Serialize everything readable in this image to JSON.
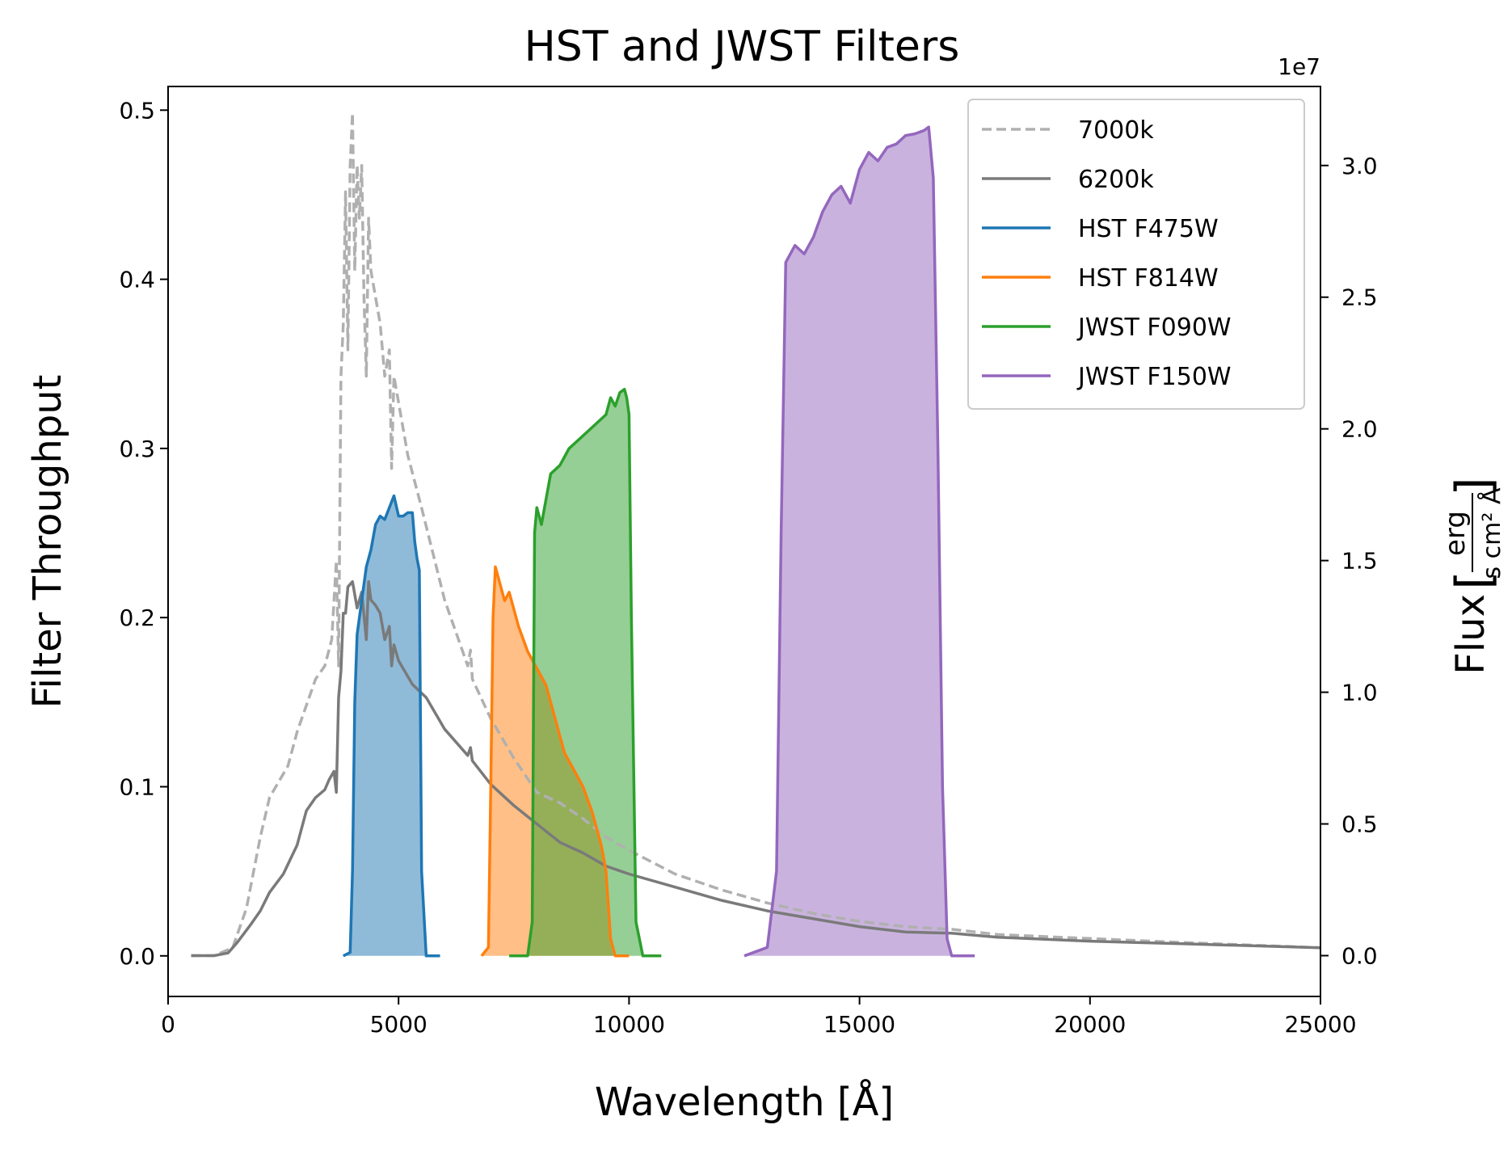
{
  "chart_data": {
    "type": "line",
    "title": "HST and JWST Filters",
    "xlabel": "Wavelength [Å]",
    "ylabel": "Filter Throughput",
    "y2label": "Flux",
    "y2label_units": {
      "numerator": "erg",
      "denominator": "s cm² Å"
    },
    "y2_offset_text": "1e7",
    "xlim": [
      0,
      25000
    ],
    "ylim": [
      -0.024,
      0.514
    ],
    "y2lim": [
      -0.155,
      3.3
    ],
    "xticks": [
      0,
      5000,
      10000,
      15000,
      20000,
      25000
    ],
    "xtick_labels": [
      "0",
      "5000",
      "10000",
      "15000",
      "20000",
      "25000"
    ],
    "yticks": [
      0.0,
      0.1,
      0.2,
      0.3,
      0.4,
      0.5
    ],
    "ytick_labels": [
      "0.0",
      "0.1",
      "0.2",
      "0.3",
      "0.4",
      "0.5"
    ],
    "y2ticks": [
      0.0,
      0.5,
      1.0,
      1.5,
      2.0,
      2.5,
      3.0
    ],
    "y2tick_labels": [
      "0.0",
      "0.5",
      "1.0",
      "1.5",
      "2.0",
      "2.5",
      "3.0"
    ],
    "legend_position": "top-right",
    "legend": [
      "7000k",
      "6200k",
      "HST F475W",
      "HST F814W",
      "JWST F090W",
      "JWST F150W"
    ],
    "spectra": [
      {
        "name": "7000k",
        "axis": "right",
        "color": "#b0b0b0",
        "style": "dashed",
        "x": [
          500,
          1000,
          1400,
          1700,
          2000,
          2200,
          2600,
          2800,
          3000,
          3200,
          3400,
          3550,
          3650,
          3700,
          3750,
          3800,
          3850,
          3900,
          3950,
          4000,
          4050,
          4100,
          4150,
          4200,
          4250,
          4300,
          4350,
          4400,
          4500,
          4600,
          4700,
          4800,
          4850,
          4900,
          5000,
          5200,
          5500,
          6000,
          6500,
          6560,
          6600,
          7000,
          7500,
          8000,
          8500,
          9000,
          9500,
          10000,
          11000,
          12000,
          13000,
          14000,
          15000,
          16000,
          17000,
          18000,
          20000,
          22000,
          25000
        ],
        "y": [
          0.0,
          0.0,
          0.03,
          0.18,
          0.45,
          0.6,
          0.72,
          0.85,
          0.95,
          1.05,
          1.1,
          1.2,
          1.5,
          1.1,
          2.2,
          2.4,
          2.9,
          2.3,
          3.0,
          3.2,
          2.6,
          3.0,
          2.8,
          3.0,
          2.5,
          2.2,
          2.8,
          2.6,
          2.5,
          2.4,
          2.2,
          2.3,
          1.85,
          2.2,
          2.1,
          1.9,
          1.7,
          1.35,
          1.1,
          1.16,
          1.05,
          0.9,
          0.75,
          0.62,
          0.58,
          0.52,
          0.45,
          0.4,
          0.31,
          0.25,
          0.2,
          0.16,
          0.13,
          0.11,
          0.1,
          0.08,
          0.065,
          0.05,
          0.03
        ]
      },
      {
        "name": "6200k",
        "axis": "right",
        "color": "#7a7a7a",
        "style": "solid",
        "x": [
          500,
          1000,
          1300,
          1500,
          1800,
          2000,
          2200,
          2500,
          2800,
          3000,
          3200,
          3400,
          3500,
          3600,
          3650,
          3700,
          3750,
          3800,
          3850,
          3900,
          4000,
          4100,
          4200,
          4300,
          4350,
          4400,
          4500,
          4600,
          4700,
          4800,
          4850,
          4900,
          5000,
          5300,
          5600,
          6000,
          6500,
          6560,
          6600,
          7000,
          7500,
          8000,
          8500,
          9000,
          9500,
          10000,
          11000,
          12000,
          13000,
          14000,
          15000,
          16000,
          17000,
          18000,
          20000,
          22000,
          25000
        ],
        "y": [
          0.0,
          0.0,
          0.01,
          0.05,
          0.12,
          0.17,
          0.24,
          0.31,
          0.42,
          0.55,
          0.6,
          0.63,
          0.67,
          0.7,
          0.62,
          0.98,
          1.08,
          1.3,
          1.3,
          1.4,
          1.42,
          1.32,
          1.38,
          1.2,
          1.42,
          1.35,
          1.33,
          1.3,
          1.2,
          1.25,
          1.1,
          1.18,
          1.12,
          1.03,
          0.98,
          0.86,
          0.76,
          0.79,
          0.74,
          0.65,
          0.57,
          0.5,
          0.43,
          0.39,
          0.34,
          0.31,
          0.26,
          0.21,
          0.17,
          0.14,
          0.11,
          0.09,
          0.085,
          0.07,
          0.055,
          0.045,
          0.03
        ]
      }
    ],
    "filters": [
      {
        "name": "HST F475W",
        "axis": "left",
        "color": "#1f77b4",
        "fill_opacity": 0.5,
        "x": [
          3800,
          3950,
          4000,
          4050,
          4100,
          4200,
          4300,
          4400,
          4500,
          4600,
          4700,
          4800,
          4900,
          5000,
          5100,
          5200,
          5300,
          5350,
          5400,
          5450,
          5500,
          5600,
          5900
        ],
        "y": [
          0.0,
          0.002,
          0.05,
          0.15,
          0.19,
          0.21,
          0.23,
          0.24,
          0.255,
          0.26,
          0.258,
          0.265,
          0.272,
          0.26,
          0.26,
          0.262,
          0.262,
          0.245,
          0.235,
          0.228,
          0.05,
          0.0,
          0.0
        ]
      },
      {
        "name": "HST F814W",
        "axis": "left",
        "color": "#ff7f0e",
        "fill_opacity": 0.5,
        "x": [
          6800,
          6950,
          7000,
          7050,
          7100,
          7200,
          7300,
          7400,
          7500,
          7600,
          7800,
          8000,
          8200,
          8400,
          8600,
          8800,
          9000,
          9200,
          9400,
          9500,
          9600,
          9700,
          10000
        ],
        "y": [
          0.0,
          0.005,
          0.1,
          0.2,
          0.23,
          0.22,
          0.21,
          0.215,
          0.205,
          0.195,
          0.18,
          0.17,
          0.16,
          0.14,
          0.12,
          0.11,
          0.1,
          0.085,
          0.065,
          0.05,
          0.01,
          0.0,
          0.0
        ]
      },
      {
        "name": "JWST F090W",
        "axis": "left",
        "color": "#2ca02c",
        "fill_opacity": 0.5,
        "x": [
          7400,
          7800,
          7900,
          7950,
          8000,
          8100,
          8300,
          8500,
          8700,
          8900,
          9100,
          9300,
          9500,
          9600,
          9700,
          9800,
          9900,
          9950,
          10000,
          10050,
          10150,
          10300,
          10700
        ],
        "y": [
          0.0,
          0.0,
          0.02,
          0.25,
          0.265,
          0.255,
          0.285,
          0.29,
          0.3,
          0.305,
          0.31,
          0.315,
          0.32,
          0.33,
          0.325,
          0.333,
          0.335,
          0.33,
          0.32,
          0.2,
          0.02,
          0.0,
          0.0
        ]
      },
      {
        "name": "JWST F150W",
        "axis": "left",
        "color": "#9467bd",
        "fill_opacity": 0.5,
        "x": [
          12500,
          13000,
          13200,
          13300,
          13400,
          13600,
          13800,
          14000,
          14200,
          14400,
          14600,
          14800,
          15000,
          15200,
          15400,
          15600,
          15800,
          16000,
          16200,
          16400,
          16500,
          16600,
          16700,
          16800,
          16900,
          17000,
          17500
        ],
        "y": [
          0.0,
          0.005,
          0.05,
          0.25,
          0.41,
          0.42,
          0.415,
          0.425,
          0.44,
          0.45,
          0.455,
          0.445,
          0.465,
          0.475,
          0.47,
          0.478,
          0.48,
          0.485,
          0.486,
          0.488,
          0.49,
          0.46,
          0.3,
          0.1,
          0.01,
          0.0,
          0.0
        ]
      }
    ]
  }
}
